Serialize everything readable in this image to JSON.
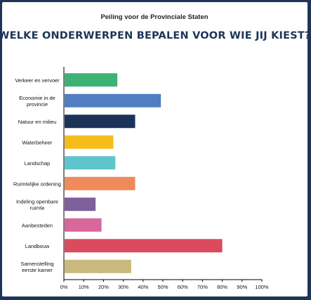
{
  "header": {
    "subtitle": "Peiling voor de Provinciale Staten",
    "title": "WELKE ONDERWERPEN BEPALEN VOOR WIE JIJ KIEST?"
  },
  "chart_data": {
    "type": "bar",
    "orientation": "horizontal",
    "subtitle": "Peiling voor de Provinciale Staten",
    "title": "WELKE ONDERWERPEN BEPALEN VOOR WIE JIJ KIEST?",
    "xlabel": "",
    "ylabel": "",
    "xlim": [
      0,
      100
    ],
    "grid": false,
    "legend": "none",
    "x_ticks": [
      "0%",
      "10%",
      "20%",
      "30%",
      "40%",
      "50%",
      "60%",
      "70%",
      "80%",
      "90%",
      "100%"
    ],
    "categories": [
      [
        "Verkeer en vervoer"
      ],
      [
        "Economie in de",
        "provincie"
      ],
      [
        "Natuur en milieu"
      ],
      [
        "Waterbeheer"
      ],
      [
        "Landschap"
      ],
      [
        "Ruimtelijke ordening"
      ],
      [
        "Indeling openbare",
        "ruimte"
      ],
      [
        "Aanbesteden"
      ],
      [
        "Landbouw"
      ],
      [
        "Samenstelling",
        "eerste kamer"
      ]
    ],
    "values": [
      27,
      49,
      36,
      25,
      26,
      36,
      16,
      19,
      80,
      34
    ],
    "colors": [
      "#3eb174",
      "#4f7fc1",
      "#1b3358",
      "#f5bc1c",
      "#5fc5cc",
      "#f08a5a",
      "#7f609a",
      "#d8679a",
      "#db4a5d",
      "#c9b97c"
    ]
  }
}
